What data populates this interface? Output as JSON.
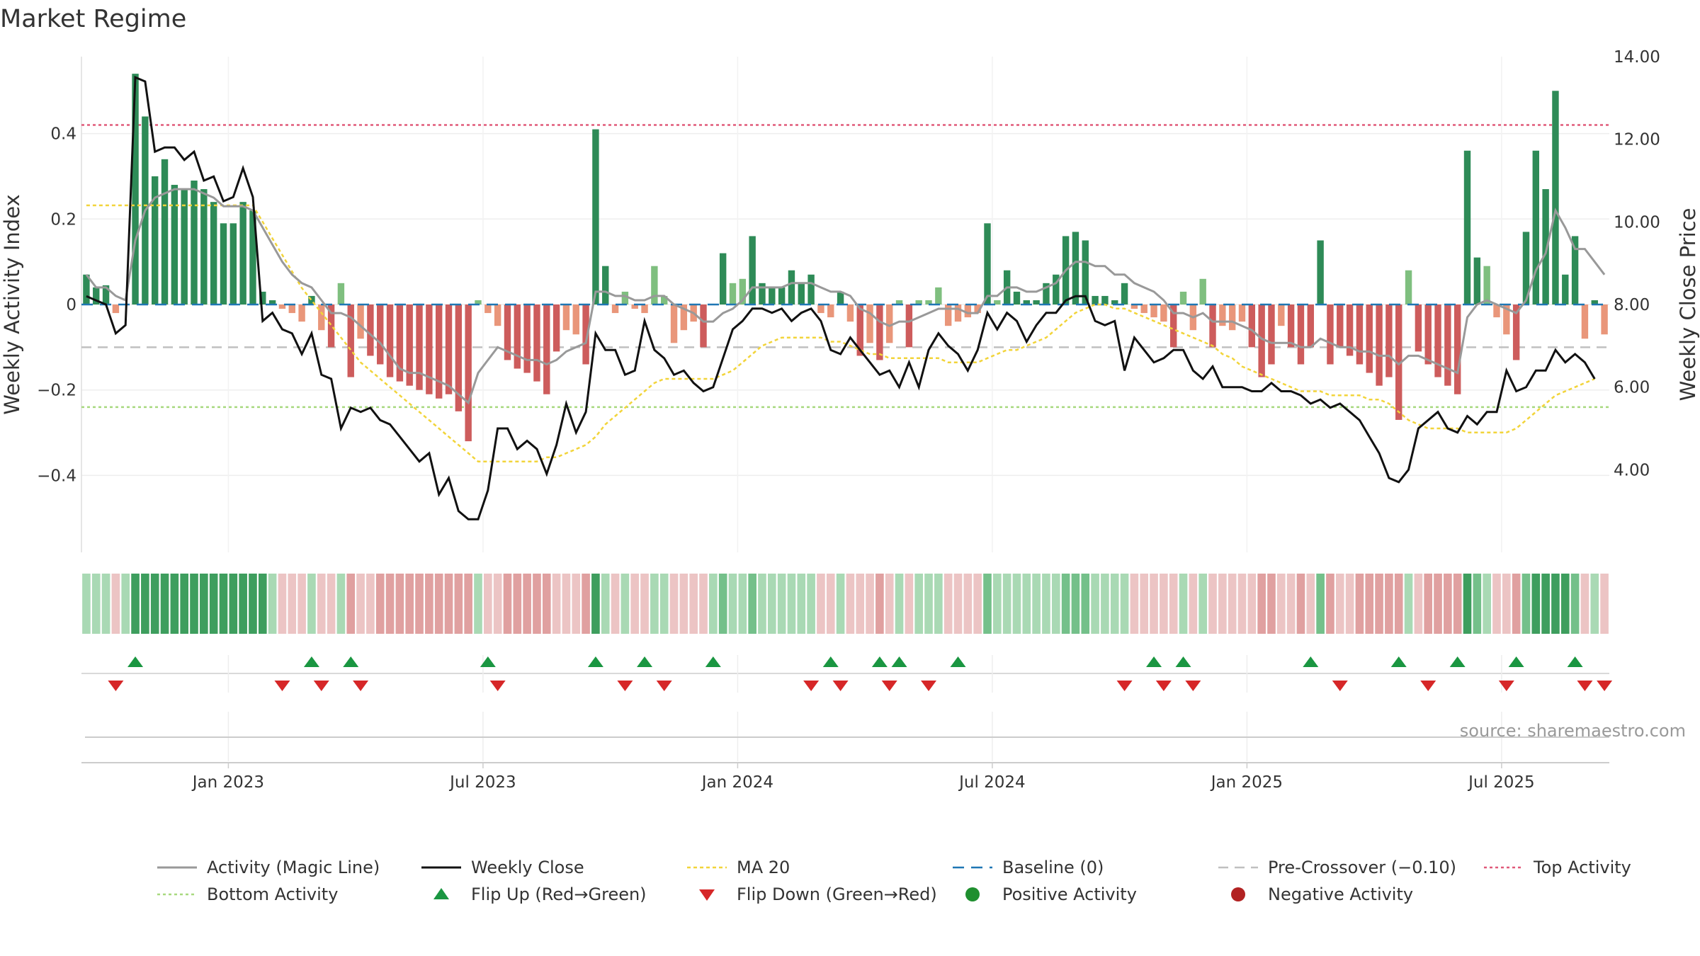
{
  "chart_data": {
    "type": "bar",
    "title": "Market Regime",
    "ylabel_left": "Weekly Activity Index",
    "ylabel_right": "Weekly Close Price",
    "source": "source: sharemaestro.com",
    "left_ylim": [
      -0.58,
      0.58
    ],
    "left_yticks": [
      {
        "v": 0.4,
        "label": "0.4"
      },
      {
        "v": 0.2,
        "label": "0.2"
      },
      {
        "v": 0,
        "label": "0"
      },
      {
        "v": -0.2,
        "label": "−0.2"
      },
      {
        "v": -0.4,
        "label": "−0.4"
      }
    ],
    "right_ylim": [
      2.0,
      14.0
    ],
    "right_yticks": [
      {
        "v": 14,
        "label": "14.00"
      },
      {
        "v": 12,
        "label": "12.00"
      },
      {
        "v": 10,
        "label": "10.00"
      },
      {
        "v": 8,
        "label": "8.00"
      },
      {
        "v": 6,
        "label": "6.00"
      },
      {
        "v": 4,
        "label": "4.00"
      }
    ],
    "xtick_labels": [
      {
        "w": 15,
        "label": "Jan 2023"
      },
      {
        "w": 41,
        "label": "Jul 2023"
      },
      {
        "w": 67,
        "label": "Jan 2024"
      },
      {
        "w": 93,
        "label": "Jul 2024"
      },
      {
        "w": 119,
        "label": "Jan 2025"
      },
      {
        "w": 145,
        "label": "Jul 2025"
      }
    ],
    "grid": true,
    "legend_position": "bottom",
    "top_activity": 0.42,
    "bottom_activity": -0.24,
    "pre_crossover": -0.1,
    "baseline": 0,
    "colors": {
      "pos_strong": "#2e8b57",
      "pos_light": "#7fbf7f",
      "neg_strong": "#cd5c5c",
      "neg_light": "#e9967a",
      "magic": "#999999",
      "close": "#111111",
      "ma": "#f2d43a",
      "baseline": "#1f77b4",
      "precross": "#c0c0c0",
      "top": "#e05a7a",
      "bottom": "#a8d97f",
      "flip_up": "#1a9641",
      "flip_down": "#d62728",
      "pos_dot": "#1f8f2f",
      "neg_dot": "#b22222"
    },
    "activity": [
      0.07,
      0.04,
      0.045,
      -0.02,
      0.0,
      0.54,
      0.44,
      0.3,
      0.34,
      0.28,
      0.27,
      0.29,
      0.27,
      0.24,
      0.19,
      0.19,
      0.24,
      0.22,
      0.03,
      0.01,
      -0.01,
      -0.02,
      -0.04,
      0.02,
      -0.06,
      -0.1,
      0.05,
      -0.17,
      -0.08,
      -0.12,
      -0.14,
      -0.17,
      -0.18,
      -0.19,
      -0.2,
      -0.21,
      -0.22,
      -0.21,
      -0.25,
      -0.32,
      0.01,
      -0.02,
      -0.05,
      -0.13,
      -0.15,
      -0.16,
      -0.18,
      -0.21,
      -0.11,
      -0.06,
      -0.07,
      -0.14,
      0.41,
      0.09,
      -0.02,
      0.03,
      -0.01,
      -0.02,
      0.09,
      0.02,
      -0.09,
      -0.06,
      -0.04,
      -0.1,
      0.0,
      0.12,
      0.05,
      0.06,
      0.16,
      0.05,
      0.04,
      0.04,
      0.08,
      0.05,
      0.07,
      -0.02,
      -0.03,
      0.03,
      -0.04,
      -0.12,
      -0.09,
      -0.13,
      -0.09,
      0.01,
      -0.1,
      0.01,
      0.01,
      0.04,
      -0.05,
      -0.04,
      -0.03,
      -0.02,
      0.19,
      0.01,
      0.08,
      0.03,
      0.01,
      0.01,
      0.05,
      0.07,
      0.16,
      0.17,
      0.15,
      0.02,
      0.02,
      0.01,
      0.05,
      -0.01,
      -0.02,
      -0.03,
      -0.04,
      -0.1,
      0.03,
      -0.06,
      0.06,
      -0.1,
      -0.05,
      -0.06,
      -0.04,
      -0.1,
      -0.17,
      -0.14,
      -0.05,
      -0.1,
      -0.14,
      -0.1,
      0.15,
      -0.14,
      -0.1,
      -0.12,
      -0.14,
      -0.16,
      -0.19,
      -0.17,
      -0.27,
      0.08,
      -0.11,
      -0.14,
      -0.17,
      -0.19,
      -0.21,
      0.36,
      0.11,
      0.09,
      -0.03,
      -0.07,
      -0.13,
      0.17,
      0.36,
      0.27,
      0.5,
      0.07,
      0.16,
      -0.08,
      0.01,
      -0.07
    ],
    "magic_line": [
      0.07,
      0.04,
      0.04,
      0.02,
      0.01,
      0.15,
      0.22,
      0.25,
      0.26,
      0.27,
      0.27,
      0.27,
      0.26,
      0.25,
      0.23,
      0.23,
      0.23,
      0.22,
      0.18,
      0.14,
      0.1,
      0.07,
      0.05,
      0.04,
      0.01,
      -0.02,
      -0.02,
      -0.03,
      -0.05,
      -0.07,
      -0.09,
      -0.12,
      -0.15,
      -0.16,
      -0.16,
      -0.17,
      -0.18,
      -0.19,
      -0.21,
      -0.23,
      -0.16,
      -0.13,
      -0.1,
      -0.11,
      -0.12,
      -0.13,
      -0.13,
      -0.14,
      -0.13,
      -0.11,
      -0.1,
      -0.09,
      0.03,
      0.03,
      0.02,
      0.02,
      0.01,
      0.01,
      0.02,
      0.02,
      0.0,
      -0.01,
      -0.02,
      -0.04,
      -0.04,
      -0.02,
      -0.01,
      0.01,
      0.04,
      0.04,
      0.04,
      0.04,
      0.05,
      0.05,
      0.05,
      0.04,
      0.03,
      0.03,
      0.02,
      -0.01,
      -0.02,
      -0.04,
      -0.05,
      -0.04,
      -0.04,
      -0.03,
      -0.02,
      -0.01,
      -0.01,
      -0.01,
      -0.02,
      -0.02,
      0.02,
      0.02,
      0.04,
      0.04,
      0.03,
      0.03,
      0.04,
      0.05,
      0.08,
      0.1,
      0.1,
      0.09,
      0.09,
      0.07,
      0.07,
      0.05,
      0.04,
      0.03,
      0.01,
      -0.02,
      -0.02,
      -0.03,
      -0.02,
      -0.04,
      -0.04,
      -0.04,
      -0.05,
      -0.06,
      -0.08,
      -0.09,
      -0.09,
      -0.09,
      -0.1,
      -0.1,
      -0.08,
      -0.09,
      -0.1,
      -0.1,
      -0.11,
      -0.11,
      -0.12,
      -0.12,
      -0.14,
      -0.12,
      -0.12,
      -0.13,
      -0.14,
      -0.15,
      -0.16,
      -0.03,
      0.0,
      0.01,
      0.0,
      -0.01,
      -0.02,
      0.01,
      0.08,
      0.12,
      0.22,
      0.18,
      0.13,
      0.13,
      0.1,
      0.07
    ],
    "weekly_close": [
      8.2,
      8.1,
      8.0,
      7.3,
      7.5,
      13.5,
      13.4,
      11.7,
      11.8,
      11.8,
      11.5,
      11.7,
      11.0,
      11.1,
      10.5,
      10.6,
      11.3,
      10.6,
      7.6,
      7.8,
      7.4,
      7.3,
      6.8,
      7.3,
      6.3,
      6.2,
      5.0,
      5.5,
      5.4,
      5.5,
      5.2,
      5.1,
      4.8,
      4.5,
      4.2,
      4.4,
      3.4,
      3.8,
      3.0,
      2.8,
      2.8,
      3.5,
      5.0,
      5.0,
      4.5,
      4.7,
      4.5,
      3.9,
      4.6,
      5.6,
      4.9,
      5.4,
      7.3,
      6.9,
      6.9,
      6.3,
      6.4,
      7.6,
      6.9,
      6.7,
      6.3,
      6.4,
      6.1,
      5.9,
      6.0,
      6.7,
      7.4,
      7.6,
      7.9,
      7.9,
      7.8,
      7.9,
      7.6,
      7.8,
      7.9,
      7.6,
      6.9,
      6.8,
      7.2,
      6.9,
      6.6,
      6.3,
      6.4,
      6.0,
      6.6,
      6.0,
      6.9,
      7.3,
      7.0,
      6.8,
      6.4,
      6.9,
      7.8,
      7.4,
      7.8,
      7.6,
      7.1,
      7.5,
      7.8,
      7.8,
      8.1,
      8.2,
      8.2,
      7.6,
      7.5,
      7.6,
      6.4,
      7.2,
      6.9,
      6.6,
      6.7,
      6.9,
      6.9,
      6.4,
      6.2,
      6.5,
      6.0,
      6.0,
      6.0,
      5.9,
      5.9,
      6.1,
      5.9,
      5.9,
      5.8,
      5.6,
      5.7,
      5.5,
      5.6,
      5.4,
      5.2,
      4.8,
      4.4,
      3.8,
      3.7,
      4.0,
      5.0,
      5.2,
      5.4,
      5.0,
      4.9,
      5.3,
      5.1,
      5.4,
      5.4,
      6.4,
      5.9,
      6.0,
      6.4,
      6.4,
      6.9,
      6.6,
      6.8,
      6.6,
      6.2
    ],
    "ma20": [
      10.4,
      10.4,
      10.4,
      10.4,
      10.4,
      10.4,
      10.4,
      10.4,
      10.4,
      10.4,
      10.4,
      10.4,
      10.4,
      10.4,
      10.4,
      10.4,
      10.4,
      10.4,
      10.0,
      9.6,
      9.2,
      8.8,
      8.4,
      8.1,
      7.8,
      7.5,
      7.2,
      6.9,
      6.6,
      6.4,
      6.2,
      6.0,
      5.8,
      5.6,
      5.4,
      5.2,
      5.0,
      4.8,
      4.6,
      4.4,
      4.2,
      4.2,
      4.2,
      4.2,
      4.2,
      4.2,
      4.2,
      4.3,
      4.3,
      4.4,
      4.5,
      4.6,
      4.8,
      5.1,
      5.3,
      5.5,
      5.7,
      5.9,
      6.1,
      6.2,
      6.2,
      6.2,
      6.2,
      6.2,
      6.2,
      6.3,
      6.4,
      6.6,
      6.8,
      7.0,
      7.1,
      7.2,
      7.2,
      7.2,
      7.2,
      7.2,
      7.1,
      7.1,
      7.0,
      6.9,
      6.8,
      6.8,
      6.7,
      6.7,
      6.7,
      6.7,
      6.7,
      6.7,
      6.6,
      6.6,
      6.6,
      6.6,
      6.7,
      6.8,
      6.9,
      6.9,
      7.0,
      7.1,
      7.2,
      7.4,
      7.6,
      7.8,
      7.9,
      8.0,
      8.0,
      7.9,
      7.9,
      7.8,
      7.7,
      7.6,
      7.5,
      7.4,
      7.3,
      7.2,
      7.1,
      7.0,
      6.8,
      6.7,
      6.5,
      6.4,
      6.3,
      6.2,
      6.1,
      6.0,
      5.9,
      5.9,
      5.9,
      5.8,
      5.8,
      5.8,
      5.8,
      5.7,
      5.7,
      5.6,
      5.4,
      5.2,
      5.1,
      5.0,
      5.0,
      5.0,
      5.0,
      4.9,
      4.9,
      4.9,
      4.9,
      4.9,
      5.0,
      5.2,
      5.4,
      5.6,
      5.8,
      5.9,
      6.0,
      6.1,
      6.2
    ],
    "flip_up": [
      5,
      23,
      27,
      41,
      52,
      57,
      64,
      76,
      81,
      83,
      89,
      109,
      112,
      125,
      134,
      140,
      146,
      152
    ],
    "flip_down": [
      3,
      20,
      24,
      28,
      42,
      55,
      59,
      74,
      77,
      82,
      86,
      106,
      110,
      113,
      128,
      137,
      145,
      153,
      155
    ]
  },
  "legend": [
    {
      "label": "Activity (Magic Line)",
      "kind": "magic"
    },
    {
      "label": "Weekly Close",
      "kind": "close"
    },
    {
      "label": "MA 20",
      "kind": "ma"
    },
    {
      "label": "Baseline (0)",
      "kind": "baseline"
    },
    {
      "label": "Pre-Crossover (−0.10)",
      "kind": "precross"
    },
    {
      "label": "Top Activity",
      "kind": "top"
    },
    {
      "label": "Bottom Activity",
      "kind": "bottom"
    },
    {
      "label": "Flip Up (Red→Green)",
      "kind": "flip_up"
    },
    {
      "label": "Flip Down (Green→Red)",
      "kind": "flip_down"
    },
    {
      "label": "Positive Activity",
      "kind": "pos_dot"
    },
    {
      "label": "Negative Activity",
      "kind": "neg_dot"
    }
  ]
}
